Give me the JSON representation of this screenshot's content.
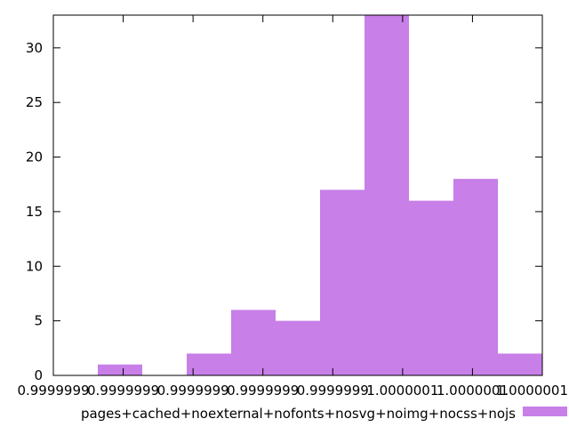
{
  "chart_data": {
    "type": "bar",
    "title": "",
    "xlabel": "",
    "ylabel": "",
    "ylim": [
      0,
      33
    ],
    "y_ticks": [
      0,
      5,
      10,
      15,
      20,
      25,
      30
    ],
    "x_tick_labels": [
      "0.9999999",
      "0.9999999",
      "0.9999999",
      "0.9999999",
      "0.9999999",
      "1.0000001",
      "1.0000001",
      "1.0000001"
    ],
    "bins": 11,
    "values": [
      1,
      0,
      2,
      6,
      5,
      17,
      33,
      16,
      18,
      2
    ],
    "bar_start_bin": 1,
    "series_color": "#c87fe8",
    "legend": {
      "label": "pages+cached+noexternal+nofonts+nosvg+noimg+nocss+nojs",
      "position": "bottom"
    },
    "grid": false
  }
}
